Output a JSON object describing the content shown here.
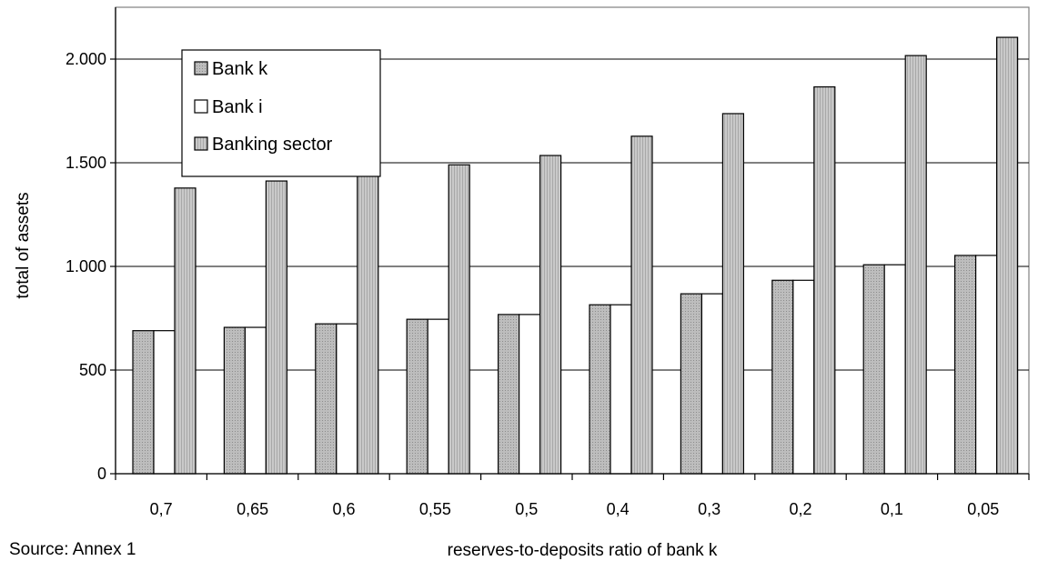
{
  "chart_data": {
    "type": "bar",
    "title": "",
    "xlabel": "reserves-to-deposits ratio of bank k",
    "ylabel": "total of assets",
    "categories": [
      "0,7",
      "0,65",
      "0,6",
      "0,55",
      "0,5",
      "0,4",
      "0,3",
      "0,2",
      "0,1",
      "0,05"
    ],
    "series": [
      {
        "name": "Bank k",
        "values": [
          690,
          706,
          723,
          745,
          768,
          815,
          868,
          933,
          1008,
          1053
        ],
        "color": "#b8b8b8"
      },
      {
        "name": "Bank i",
        "values": [
          690,
          706,
          723,
          745,
          768,
          815,
          868,
          933,
          1008,
          1053
        ],
        "color": "#ffffff"
      },
      {
        "name": "Banking sector",
        "values": [
          1378,
          1412,
          1450,
          1490,
          1535,
          1628,
          1737,
          1866,
          2017,
          2105
        ],
        "color": "#c4c4c4"
      }
    ],
    "ylim": [
      0,
      2250
    ],
    "yticks": [
      0,
      500,
      1000,
      1500,
      2000
    ],
    "ytick_labels": [
      "0",
      "500",
      "1.000",
      "1.500",
      "2.000"
    ],
    "grid": true,
    "legend_position": "top-left"
  },
  "source_note": "Source: Annex 1"
}
